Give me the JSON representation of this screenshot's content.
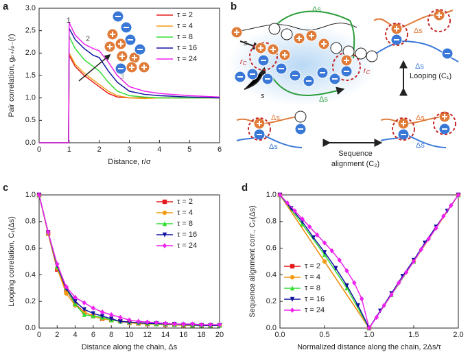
{
  "panels": [
    "a",
    "b",
    "c",
    "d"
  ],
  "diagram": {
    "s1": "s",
    "ds_top": "Δs",
    "r1": "r",
    "r1_sub": "C",
    "s2": "s",
    "ds_bottom": "Δs",
    "r2": "r",
    "r2_sub": "C",
    "ds_tr1": "Δs",
    "ds_tr2": "Δs",
    "looping": "Looping (C₁)",
    "ds_bl1": "Δs",
    "ds_bl2": "Δs",
    "ds_br1": "Δs",
    "ds_br2": "Δs",
    "seq1": "Sequence",
    "seq2": "alignment (C₂)"
  },
  "chart_data": [
    {
      "type": "line",
      "xlabel": "Distance, r/σ",
      "ylabel": "Pair correlation, gₚ₊/ₚ₋(r)",
      "xlim": [
        0,
        6
      ],
      "ylim": [
        0,
        3
      ],
      "xticks": [
        0,
        1,
        2,
        3,
        4,
        5,
        6
      ],
      "yticks": [
        {
          "value": 0,
          "label": "0.0"
        },
        {
          "value": 0.5,
          "label": "0.5"
        },
        {
          "value": 1,
          "label": "1.0"
        },
        {
          "value": 1.5,
          "label": "1.5"
        },
        {
          "value": 2,
          "label": "2.0"
        },
        {
          "value": 2.5,
          "label": "2.5"
        },
        {
          "value": 3,
          "label": "3.0"
        }
      ],
      "legend": "upper right",
      "annotations": [
        "1",
        "2",
        "3"
      ],
      "x": [
        0,
        0.98,
        1.0,
        1.2,
        1.5,
        1.8,
        2.0,
        2.3,
        2.6,
        3.0,
        3.5,
        4,
        5,
        6
      ],
      "series": [
        {
          "name": "τ = 2",
          "color": "#e41a1c",
          "values": [
            0,
            0,
            1.95,
            1.7,
            1.5,
            1.35,
            1.25,
            1.1,
            1.02,
            1.0,
            1.0,
            1.0,
            1.0,
            1.0
          ]
        },
        {
          "name": "τ = 4",
          "color": "#f39c12",
          "values": [
            0,
            0,
            2.0,
            1.75,
            1.55,
            1.4,
            1.3,
            1.15,
            1.05,
            1.0,
            0.99,
            1.0,
            1.0,
            1.0
          ]
        },
        {
          "name": "τ = 8",
          "color": "#33dd33",
          "values": [
            0,
            0,
            2.37,
            2.1,
            1.85,
            1.7,
            1.6,
            1.35,
            1.15,
            1.05,
            1.02,
            1.0,
            1.0,
            1.0
          ]
        },
        {
          "name": "τ = 16",
          "color": "#1010a0",
          "values": [
            0,
            0,
            2.55,
            2.3,
            2.1,
            1.95,
            1.9,
            1.6,
            1.35,
            1.15,
            1.08,
            1.05,
            1.02,
            1.0
          ]
        },
        {
          "name": "τ = 24",
          "color": "#ee22ee",
          "values": [
            0,
            0,
            2.68,
            2.4,
            2.2,
            2.1,
            2.05,
            1.8,
            1.5,
            1.25,
            1.15,
            1.1,
            1.05,
            1.02
          ]
        }
      ]
    },
    {
      "type": "line",
      "xlabel": "Distance along the chain, Δs",
      "ylabel": "Looping correlation, C₁(Δs)",
      "xlim": [
        0,
        20
      ],
      "ylim": [
        0,
        1
      ],
      "xticks": [
        0,
        2,
        4,
        6,
        8,
        10,
        12,
        14,
        16,
        18,
        20
      ],
      "yticks": [
        {
          "value": 0,
          "label": "0.0"
        },
        {
          "value": 0.2,
          "label": "0.2"
        },
        {
          "value": 0.4,
          "label": "0.4"
        },
        {
          "value": 0.6,
          "label": "0.6"
        },
        {
          "value": 0.8,
          "label": "0.8"
        },
        {
          "value": 1,
          "label": "1.0"
        }
      ],
      "legend": "upper right",
      "x": [
        0,
        1,
        2,
        3,
        4,
        5,
        6,
        7,
        8,
        9,
        10,
        11,
        12,
        13,
        14,
        15,
        16,
        17,
        18,
        19,
        20
      ],
      "series": [
        {
          "name": "τ = 2",
          "color": "#e41a1c",
          "marker": "square",
          "values": [
            1.0,
            0.71,
            0.44,
            0.29,
            0.18,
            0.12,
            0.09,
            0.07,
            0.06,
            0.05,
            0.04,
            0.035,
            0.03,
            0.03,
            0.025,
            0.025,
            0.02,
            0.02,
            0.02,
            0.02,
            0.02
          ]
        },
        {
          "name": "τ = 4",
          "color": "#f39c12",
          "marker": "circle",
          "values": [
            1.0,
            0.71,
            0.45,
            0.26,
            0.17,
            0.12,
            0.09,
            0.07,
            0.06,
            0.05,
            0.04,
            0.035,
            0.03,
            0.03,
            0.025,
            0.025,
            0.02,
            0.02,
            0.02,
            0.02,
            0.02
          ]
        },
        {
          "name": "τ = 8",
          "color": "#33dd33",
          "marker": "triangle-up",
          "values": [
            1.0,
            0.72,
            0.46,
            0.3,
            0.18,
            0.1,
            0.09,
            0.08,
            0.06,
            0.05,
            0.045,
            0.04,
            0.035,
            0.03,
            0.03,
            0.025,
            0.025,
            0.02,
            0.02,
            0.02,
            0.02
          ]
        },
        {
          "name": "τ = 16",
          "color": "#1010a0",
          "marker": "triangle-down",
          "values": [
            1.0,
            0.72,
            0.47,
            0.3,
            0.2,
            0.14,
            0.11,
            0.09,
            0.07,
            0.05,
            0.045,
            0.04,
            0.035,
            0.035,
            0.03,
            0.03,
            0.025,
            0.025,
            0.02,
            0.02,
            0.02
          ]
        },
        {
          "name": "τ = 24",
          "color": "#ee22ee",
          "marker": "diamond",
          "values": [
            1.0,
            0.72,
            0.48,
            0.31,
            0.23,
            0.19,
            0.15,
            0.12,
            0.1,
            0.08,
            0.06,
            0.05,
            0.045,
            0.04,
            0.035,
            0.03,
            0.03,
            0.03,
            0.025,
            0.025,
            0.025
          ]
        }
      ]
    },
    {
      "type": "line",
      "xlabel": "Normalized distance along the chain, 2Δs/τ",
      "ylabel": "Sequence alignment corr., C₂(Δs)",
      "xlim": [
        0,
        2
      ],
      "ylim": [
        0,
        1
      ],
      "xticks": [
        {
          "value": 0,
          "label": "0.0"
        },
        {
          "value": 0.5,
          "label": "0.5"
        },
        {
          "value": 1,
          "label": "1.0"
        },
        {
          "value": 1.5,
          "label": "1.5"
        },
        {
          "value": 2,
          "label": "2.0"
        }
      ],
      "yticks": [
        {
          "value": 0,
          "label": "0.0"
        },
        {
          "value": 0.2,
          "label": "0.2"
        },
        {
          "value": 0.4,
          "label": "0.4"
        },
        {
          "value": 0.6,
          "label": "0.6"
        },
        {
          "value": 0.8,
          "label": "0.8"
        },
        {
          "value": 1,
          "label": "1.0"
        }
      ],
      "legend": "lower left",
      "series": [
        {
          "name": "τ = 2",
          "color": "#e41a1c",
          "marker": "square",
          "x": [
            0,
            1,
            2
          ],
          "values": [
            1,
            0,
            1
          ]
        },
        {
          "name": "τ = 4",
          "color": "#f39c12",
          "marker": "circle",
          "x": [
            0,
            0.5,
            1,
            1.5,
            2
          ],
          "values": [
            1,
            0.5,
            0,
            0.5,
            1
          ]
        },
        {
          "name": "τ = 8",
          "color": "#33dd33",
          "marker": "triangle-up",
          "x": [
            0,
            0.25,
            0.5,
            0.75,
            1,
            1.25,
            1.5,
            1.75,
            2
          ],
          "values": [
            1,
            0.78,
            0.55,
            0.3,
            0,
            0.25,
            0.5,
            0.76,
            1
          ]
        },
        {
          "name": "τ = 16",
          "color": "#1010a0",
          "marker": "triangle-down",
          "x": [
            0,
            0.125,
            0.25,
            0.375,
            0.5,
            0.625,
            0.75,
            0.875,
            1,
            1.125,
            1.25,
            1.375,
            1.5,
            1.625,
            1.75,
            1.875,
            2
          ],
          "values": [
            1,
            0.9,
            0.8,
            0.68,
            0.57,
            0.45,
            0.32,
            0.17,
            0,
            0.13,
            0.26,
            0.39,
            0.51,
            0.64,
            0.76,
            0.88,
            1
          ]
        },
        {
          "name": "τ = 24",
          "color": "#ee22ee",
          "marker": "diamond",
          "x": [
            0,
            0.083,
            0.167,
            0.25,
            0.333,
            0.417,
            0.5,
            0.583,
            0.667,
            0.75,
            0.833,
            0.917,
            1,
            1.083,
            1.167,
            1.25,
            1.333,
            1.417,
            1.5,
            1.583,
            1.667,
            1.75,
            1.833,
            1.917,
            2
          ],
          "values": [
            1,
            0.94,
            0.88,
            0.82,
            0.76,
            0.7,
            0.64,
            0.58,
            0.51,
            0.43,
            0.34,
            0.22,
            0,
            0.08,
            0.17,
            0.25,
            0.34,
            0.42,
            0.5,
            0.59,
            0.67,
            0.75,
            0.84,
            0.92,
            1
          ]
        }
      ]
    }
  ]
}
